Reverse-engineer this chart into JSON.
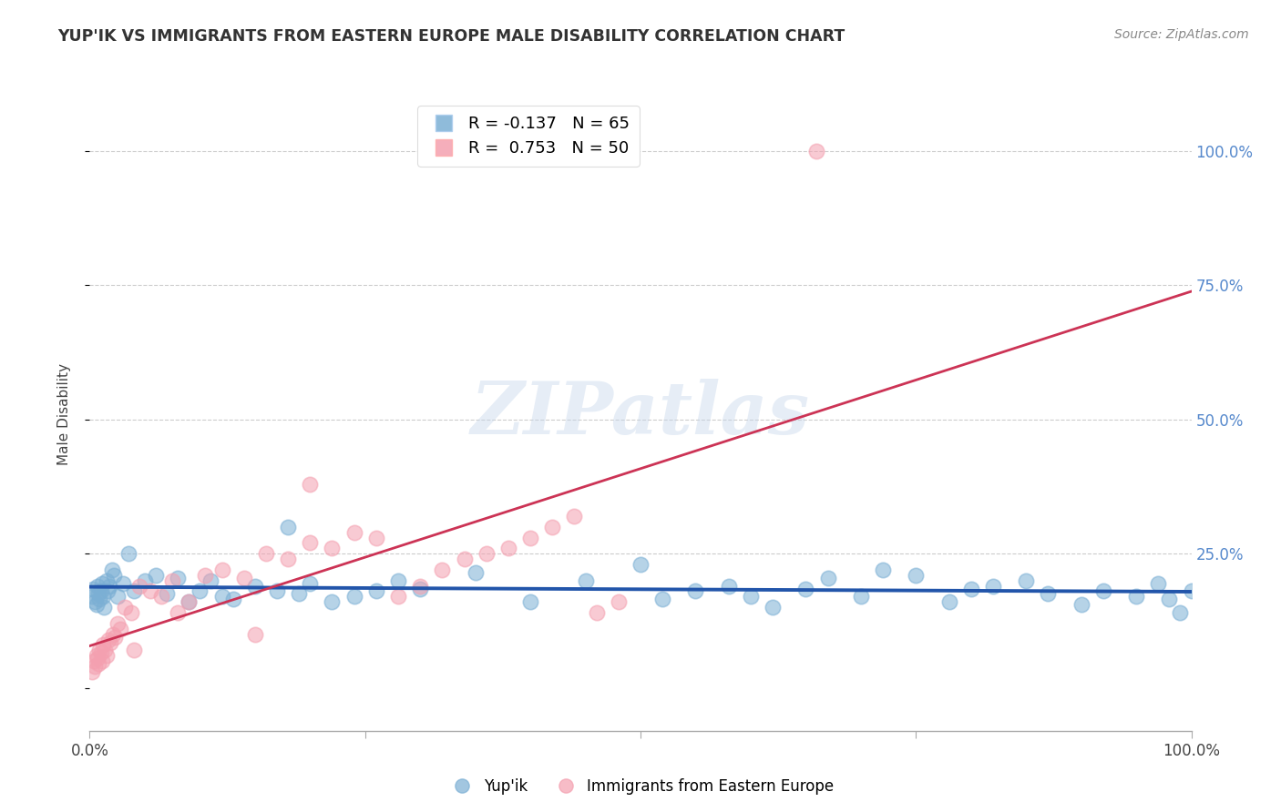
{
  "title": "YUP'IK VS IMMIGRANTS FROM EASTERN EUROPE MALE DISABILITY CORRELATION CHART",
  "source": "Source: ZipAtlas.com",
  "ylabel": "Male Disability",
  "legend_label1": "Yup'ik",
  "legend_label2": "Immigrants from Eastern Europe",
  "R1": -0.137,
  "N1": 65,
  "R2": 0.753,
  "N2": 50,
  "color_blue": "#7BAFD4",
  "color_pink": "#F4A0B0",
  "trendline_blue": "#2255AA",
  "trendline_pink": "#CC3355",
  "background_color": "#FFFFFF",
  "watermark": "ZIPatlas",
  "xlim": [
    0,
    100
  ],
  "ylim": [
    -8,
    110
  ],
  "blue_x": [
    0.2,
    0.3,
    0.5,
    0.6,
    0.7,
    0.8,
    0.9,
    1.0,
    1.1,
    1.2,
    1.3,
    1.5,
    1.6,
    1.8,
    2.0,
    2.2,
    2.5,
    3.0,
    3.5,
    4.0,
    5.0,
    6.0,
    7.0,
    8.0,
    9.0,
    10.0,
    11.0,
    12.0,
    13.0,
    15.0,
    17.0,
    18.0,
    19.0,
    20.0,
    22.0,
    24.0,
    26.0,
    28.0,
    30.0,
    35.0,
    40.0,
    45.0,
    50.0,
    52.0,
    55.0,
    58.0,
    60.0,
    62.0,
    65.0,
    67.0,
    70.0,
    72.0,
    75.0,
    78.0,
    80.0,
    82.0,
    85.0,
    87.0,
    90.0,
    92.0,
    95.0,
    97.0,
    98.0,
    99.0,
    100.0
  ],
  "blue_y": [
    17.0,
    18.5,
    16.0,
    15.5,
    19.0,
    17.5,
    16.5,
    18.0,
    19.5,
    17.0,
    15.0,
    20.0,
    18.0,
    19.0,
    22.0,
    21.0,
    17.0,
    19.5,
    25.0,
    18.0,
    20.0,
    21.0,
    17.5,
    20.5,
    16.0,
    18.0,
    20.0,
    17.0,
    16.5,
    19.0,
    18.0,
    30.0,
    17.5,
    19.5,
    16.0,
    17.0,
    18.0,
    20.0,
    18.5,
    21.5,
    16.0,
    20.0,
    23.0,
    16.5,
    18.0,
    19.0,
    17.0,
    15.0,
    18.5,
    20.5,
    17.0,
    22.0,
    21.0,
    16.0,
    18.5,
    19.0,
    20.0,
    17.5,
    15.5,
    18.0,
    17.0,
    19.5,
    16.5,
    14.0,
    18.0
  ],
  "pink_x": [
    0.2,
    0.4,
    0.5,
    0.6,
    0.7,
    0.8,
    0.9,
    1.0,
    1.1,
    1.2,
    1.4,
    1.5,
    1.7,
    1.9,
    2.1,
    2.3,
    2.5,
    2.8,
    3.2,
    3.8,
    4.5,
    5.5,
    6.5,
    7.5,
    9.0,
    10.5,
    12.0,
    14.0,
    16.0,
    18.0,
    20.0,
    22.0,
    24.0,
    26.0,
    28.0,
    30.0,
    32.0,
    34.0,
    36.0,
    38.0,
    40.0,
    42.0,
    44.0,
    46.0,
    48.0,
    66.0,
    20.0,
    15.0,
    8.0,
    4.0
  ],
  "pink_y": [
    3.0,
    5.0,
    4.0,
    6.0,
    5.5,
    4.5,
    7.0,
    6.5,
    5.0,
    8.0,
    7.0,
    6.0,
    9.0,
    8.5,
    10.0,
    9.5,
    12.0,
    11.0,
    15.0,
    14.0,
    19.0,
    18.0,
    17.0,
    20.0,
    16.0,
    21.0,
    22.0,
    20.5,
    25.0,
    24.0,
    27.0,
    26.0,
    29.0,
    28.0,
    17.0,
    19.0,
    22.0,
    24.0,
    25.0,
    26.0,
    28.0,
    30.0,
    32.0,
    14.0,
    16.0,
    100.0,
    38.0,
    10.0,
    14.0,
    7.0
  ]
}
